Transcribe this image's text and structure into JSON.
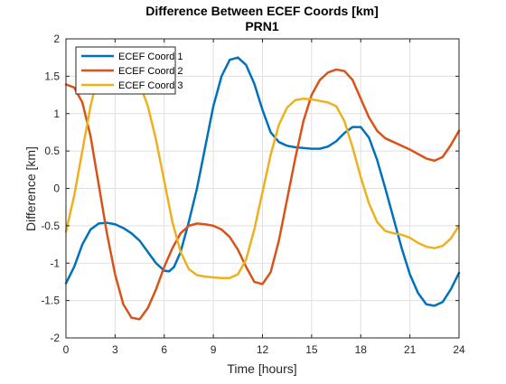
{
  "chart_data": {
    "type": "line",
    "title": "Difference Between ECEF Coords [km]",
    "subtitle": "PRN1",
    "xlabel": "Time [hours]",
    "ylabel": "Difference [km]",
    "xlim": [
      0,
      24
    ],
    "ylim": [
      -2,
      2
    ],
    "xticks": [
      0,
      3,
      6,
      9,
      12,
      15,
      18,
      21,
      24
    ],
    "yticks": [
      -2,
      -1.5,
      -1,
      -0.5,
      0,
      0.5,
      1,
      1.5,
      2
    ],
    "grid": true,
    "legend_position": "top-left",
    "series": [
      {
        "name": "ECEF Coord 1",
        "color": "#0072BD",
        "x": [
          0,
          0.5,
          1,
          1.5,
          2,
          2.5,
          3,
          3.5,
          4,
          4.5,
          5,
          5.5,
          6,
          6.3,
          6.6,
          7,
          7.5,
          8,
          8.5,
          9,
          9.5,
          10,
          10.5,
          11,
          11.5,
          12,
          12.5,
          13,
          13.5,
          14,
          14.5,
          15,
          15.5,
          16,
          16.5,
          17,
          17.5,
          18,
          18.5,
          19,
          19.5,
          20,
          20.5,
          21,
          21.5,
          22,
          22.5,
          23,
          23.5,
          24
        ],
        "values": [
          -1.27,
          -1.05,
          -0.75,
          -0.55,
          -0.47,
          -0.46,
          -0.48,
          -0.53,
          -0.6,
          -0.7,
          -0.85,
          -1.0,
          -1.1,
          -1.11,
          -1.05,
          -0.85,
          -0.45,
          0.0,
          0.55,
          1.1,
          1.5,
          1.72,
          1.75,
          1.65,
          1.4,
          1.05,
          0.75,
          0.62,
          0.57,
          0.55,
          0.54,
          0.53,
          0.53,
          0.56,
          0.63,
          0.74,
          0.82,
          0.82,
          0.68,
          0.38,
          0.0,
          -0.4,
          -0.8,
          -1.15,
          -1.4,
          -1.55,
          -1.57,
          -1.52,
          -1.35,
          -1.13
        ]
      },
      {
        "name": "ECEF Coord 2",
        "color": "#D95319",
        "x": [
          0,
          0.5,
          1,
          1.5,
          2,
          2.5,
          3,
          3.5,
          4,
          4.5,
          5,
          5.5,
          6,
          6.5,
          7,
          7.5,
          8,
          8.5,
          9,
          9.5,
          10,
          10.5,
          11,
          11.5,
          12,
          12.5,
          13,
          13.5,
          14,
          14.5,
          15,
          15.5,
          16,
          16.5,
          17,
          17.5,
          18,
          18.5,
          19,
          19.5,
          20,
          20.5,
          21,
          21.5,
          22,
          22.5,
          23,
          23.5,
          24
        ],
        "values": [
          1.39,
          1.35,
          1.15,
          0.7,
          0.05,
          -0.6,
          -1.15,
          -1.55,
          -1.73,
          -1.75,
          -1.6,
          -1.35,
          -1.05,
          -0.8,
          -0.6,
          -0.5,
          -0.47,
          -0.48,
          -0.5,
          -0.55,
          -0.65,
          -0.82,
          -1.05,
          -1.25,
          -1.28,
          -1.12,
          -0.7,
          -0.15,
          0.4,
          0.9,
          1.25,
          1.45,
          1.55,
          1.59,
          1.57,
          1.45,
          1.2,
          0.95,
          0.77,
          0.67,
          0.62,
          0.57,
          0.52,
          0.46,
          0.4,
          0.37,
          0.42,
          0.58,
          0.77
        ]
      },
      {
        "name": "ECEF Coord 3",
        "color": "#EDB120",
        "x": [
          0,
          0.5,
          1,
          1.5,
          2,
          2.5,
          3,
          3.5,
          4,
          4.5,
          5,
          5.5,
          6,
          6.5,
          7,
          7.5,
          8,
          8.5,
          9,
          9.5,
          10,
          10.5,
          11,
          11.5,
          12,
          12.5,
          13,
          13.5,
          14,
          14.5,
          15,
          15.5,
          16,
          16.5,
          17,
          17.5,
          18,
          18.5,
          19,
          19.5,
          20,
          20.5,
          21,
          21.5,
          22,
          22.5,
          23,
          23.5,
          24
        ],
        "values": [
          -0.58,
          -0.1,
          0.5,
          1.1,
          1.55,
          1.75,
          1.75,
          1.7,
          1.6,
          1.4,
          1.1,
          0.65,
          0.1,
          -0.45,
          -0.85,
          -1.08,
          -1.16,
          -1.18,
          -1.19,
          -1.2,
          -1.2,
          -1.15,
          -0.95,
          -0.55,
          -0.05,
          0.45,
          0.85,
          1.08,
          1.18,
          1.2,
          1.19,
          1.17,
          1.15,
          1.1,
          0.9,
          0.55,
          0.15,
          -0.2,
          -0.45,
          -0.57,
          -0.6,
          -0.62,
          -0.66,
          -0.73,
          -0.78,
          -0.8,
          -0.77,
          -0.67,
          -0.5
        ]
      }
    ]
  }
}
